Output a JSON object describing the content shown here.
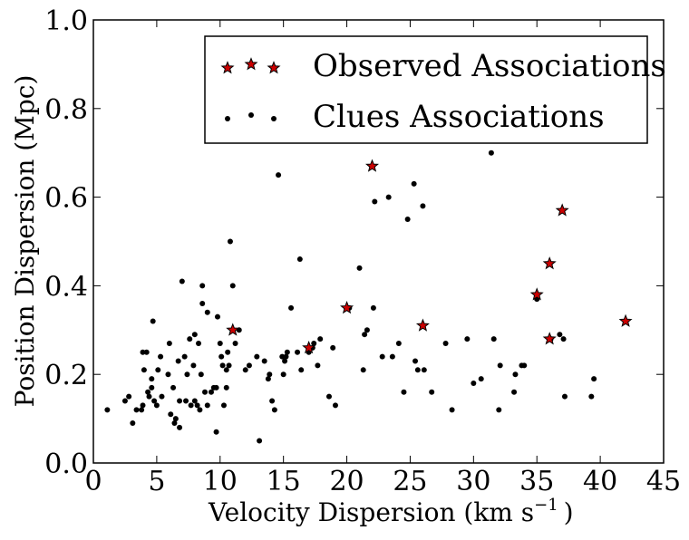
{
  "chart_data": {
    "type": "scatter",
    "title": "",
    "xlabel": "Velocity Dispersion (km s",
    "xlabel_sup": "−1",
    "xlabel_close": ")",
    "ylabel": "Position Dispersion (Mpc)",
    "xlim": [
      0,
      45
    ],
    "ylim": [
      0.0,
      1.0
    ],
    "xticks": [
      0,
      5,
      10,
      15,
      20,
      25,
      30,
      35,
      40,
      45
    ],
    "xtick_labels": [
      "0",
      "5",
      "10",
      "15",
      "20",
      "25",
      "30",
      "35",
      "40",
      "45"
    ],
    "yticks": [
      0.0,
      0.2,
      0.4,
      0.6,
      0.8,
      1.0
    ],
    "ytick_labels": [
      "0.0",
      "0.2",
      "0.4",
      "0.6",
      "0.8",
      "1.0"
    ],
    "grid": false,
    "legend_position": "top-right",
    "series": [
      {
        "name": "Observed Associations",
        "marker": "star",
        "color": "#cc0000",
        "points": [
          [
            11.0,
            0.3
          ],
          [
            17.0,
            0.26
          ],
          [
            20.0,
            0.35
          ],
          [
            22.0,
            0.67
          ],
          [
            26.0,
            0.31
          ],
          [
            35.0,
            0.38
          ],
          [
            36.0,
            0.45
          ],
          [
            36.0,
            0.28
          ],
          [
            37.0,
            0.57
          ],
          [
            42.0,
            0.32
          ]
        ]
      },
      {
        "name": "Clues Associations",
        "marker": "dot",
        "color": "#000000",
        "points": [
          [
            1.1,
            0.12
          ],
          [
            2.5,
            0.14
          ],
          [
            2.8,
            0.15
          ],
          [
            3.1,
            0.09
          ],
          [
            3.4,
            0.12
          ],
          [
            3.8,
            0.12
          ],
          [
            3.9,
            0.13
          ],
          [
            3.9,
            0.25
          ],
          [
            4.0,
            0.21
          ],
          [
            4.2,
            0.25
          ],
          [
            4.3,
            0.16
          ],
          [
            4.4,
            0.15
          ],
          [
            4.6,
            0.17
          ],
          [
            4.6,
            0.19
          ],
          [
            4.7,
            0.32
          ],
          [
            4.8,
            0.14
          ],
          [
            5.0,
            0.13
          ],
          [
            5.1,
            0.21
          ],
          [
            5.3,
            0.24
          ],
          [
            5.4,
            0.15
          ],
          [
            5.9,
            0.2
          ],
          [
            6.0,
            0.27
          ],
          [
            6.1,
            0.11
          ],
          [
            6.3,
            0.17
          ],
          [
            6.4,
            0.09
          ],
          [
            6.5,
            0.1
          ],
          [
            6.7,
            0.23
          ],
          [
            6.8,
            0.08
          ],
          [
            6.8,
            0.14
          ],
          [
            7.0,
            0.41
          ],
          [
            7.2,
            0.24
          ],
          [
            7.3,
            0.14
          ],
          [
            7.4,
            0.2
          ],
          [
            7.6,
            0.28
          ],
          [
            7.7,
            0.13
          ],
          [
            7.9,
            0.22
          ],
          [
            8.0,
            0.29
          ],
          [
            8.0,
            0.14
          ],
          [
            8.2,
            0.13
          ],
          [
            8.3,
            0.27
          ],
          [
            8.4,
            0.12
          ],
          [
            8.5,
            0.2
          ],
          [
            8.6,
            0.36
          ],
          [
            8.6,
            0.4
          ],
          [
            8.8,
            0.16
          ],
          [
            9.0,
            0.13
          ],
          [
            9.0,
            0.34
          ],
          [
            9.3,
            0.16
          ],
          [
            9.5,
            0.17
          ],
          [
            9.7,
            0.07
          ],
          [
            9.7,
            0.17
          ],
          [
            9.8,
            0.33
          ],
          [
            10.0,
            0.27
          ],
          [
            10.1,
            0.24
          ],
          [
            10.2,
            0.22
          ],
          [
            10.3,
            0.13
          ],
          [
            10.5,
            0.21
          ],
          [
            10.5,
            0.17
          ],
          [
            10.6,
            0.25
          ],
          [
            10.7,
            0.22
          ],
          [
            10.8,
            0.5
          ],
          [
            11.0,
            0.4
          ],
          [
            11.2,
            0.27
          ],
          [
            11.5,
            0.3
          ],
          [
            12.0,
            0.21
          ],
          [
            12.3,
            0.22
          ],
          [
            12.9,
            0.24
          ],
          [
            13.1,
            0.05
          ],
          [
            13.5,
            0.23
          ],
          [
            13.8,
            0.19
          ],
          [
            13.9,
            0.2
          ],
          [
            14.1,
            0.14
          ],
          [
            14.3,
            0.12
          ],
          [
            14.6,
            0.65
          ],
          [
            14.9,
            0.24
          ],
          [
            15.0,
            0.2
          ],
          [
            15.1,
            0.23
          ],
          [
            15.2,
            0.24
          ],
          [
            15.3,
            0.25
          ],
          [
            15.6,
            0.35
          ],
          [
            16.1,
            0.25
          ],
          [
            16.3,
            0.46
          ],
          [
            16.4,
            0.21
          ],
          [
            17.0,
            0.25
          ],
          [
            17.3,
            0.26
          ],
          [
            17.4,
            0.27
          ],
          [
            17.7,
            0.22
          ],
          [
            17.9,
            0.28
          ],
          [
            18.6,
            0.15
          ],
          [
            18.9,
            0.26
          ],
          [
            19.1,
            0.13
          ],
          [
            20.2,
            0.35
          ],
          [
            21.0,
            0.44
          ],
          [
            21.3,
            0.21
          ],
          [
            21.4,
            0.29
          ],
          [
            21.6,
            0.3
          ],
          [
            22.1,
            0.35
          ],
          [
            22.2,
            0.59
          ],
          [
            22.8,
            0.24
          ],
          [
            23.3,
            0.6
          ],
          [
            23.6,
            0.24
          ],
          [
            24.1,
            0.27
          ],
          [
            24.5,
            0.16
          ],
          [
            24.8,
            0.55
          ],
          [
            25.3,
            0.63
          ],
          [
            25.4,
            0.23
          ],
          [
            25.6,
            0.21
          ],
          [
            26.0,
            0.58
          ],
          [
            26.1,
            0.21
          ],
          [
            26.7,
            0.16
          ],
          [
            27.8,
            0.27
          ],
          [
            28.3,
            0.12
          ],
          [
            29.5,
            0.28
          ],
          [
            30.0,
            0.18
          ],
          [
            30.6,
            0.19
          ],
          [
            31.4,
            0.7
          ],
          [
            31.6,
            0.28
          ],
          [
            32.0,
            0.12
          ],
          [
            32.1,
            0.22
          ],
          [
            33.2,
            0.16
          ],
          [
            33.3,
            0.2
          ],
          [
            33.8,
            0.22
          ],
          [
            34.0,
            0.22
          ],
          [
            35.0,
            0.37
          ],
          [
            36.1,
            0.28
          ],
          [
            36.8,
            0.29
          ],
          [
            37.1,
            0.28
          ],
          [
            37.2,
            0.15
          ],
          [
            39.3,
            0.15
          ],
          [
            39.5,
            0.19
          ]
        ]
      }
    ]
  }
}
